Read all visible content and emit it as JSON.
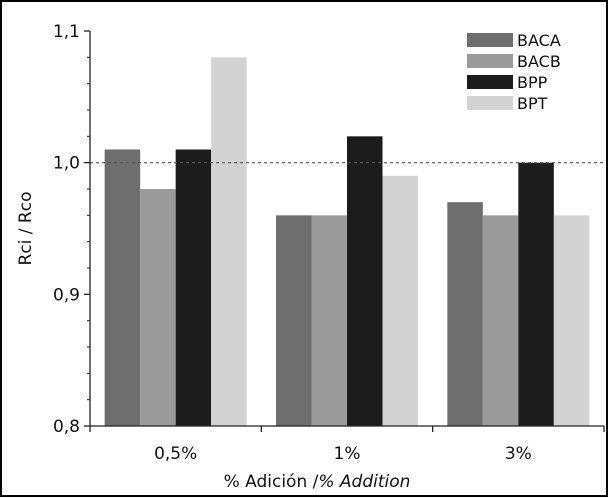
{
  "chart_data": {
    "type": "bar",
    "categories": [
      "0,5%",
      "1%",
      "3%"
    ],
    "series": [
      {
        "name": "BACA",
        "values": [
          1.01,
          0.96,
          0.97
        ],
        "color": "#6e6e6e"
      },
      {
        "name": "BACB",
        "values": [
          0.98,
          0.96,
          0.96
        ],
        "color": "#9a9a9a"
      },
      {
        "name": "BPP",
        "values": [
          1.01,
          1.02,
          1.0
        ],
        "color": "#1c1c1c"
      },
      {
        "name": "BPT",
        "values": [
          1.08,
          0.99,
          0.96
        ],
        "color": "#d3d3d3"
      }
    ],
    "ylabel": "Rci / Rco",
    "xlabel_main": "% Adición /",
    "xlabel_italic": "% Addition",
    "ylim": [
      0.8,
      1.1
    ],
    "yticks": [
      "0,8",
      "0,9",
      "1,0",
      "1,1"
    ],
    "reference_line": 1.0,
    "reference_line_style": "dotted",
    "legend_position": "top-right",
    "grid": false
  }
}
